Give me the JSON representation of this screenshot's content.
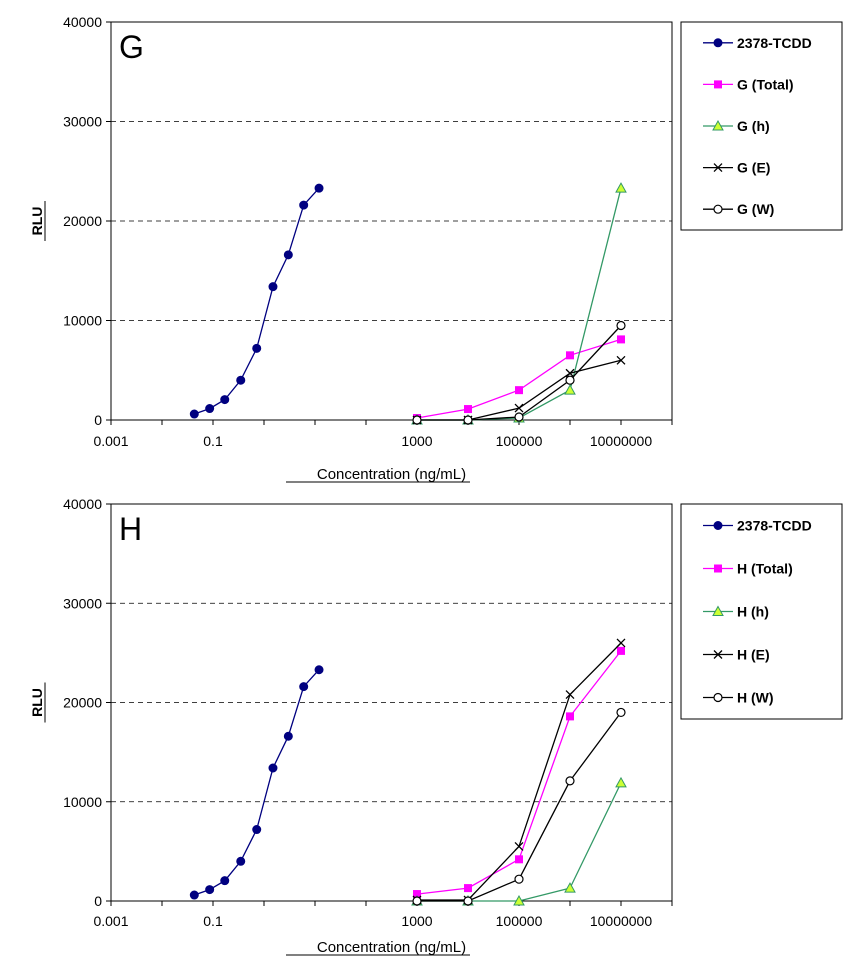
{
  "chart_data": [
    {
      "type": "line",
      "panel_label": "G",
      "xlabel": "Concentration (ng/mL)",
      "ylabel": "RLU",
      "xscale": "log",
      "xlim": [
        0.001,
        100000000
      ],
      "ylim": [
        0,
        40000
      ],
      "x_ticks": [
        "0.001",
        "0.1",
        "1000",
        "100000",
        "10000000"
      ],
      "y_ticks": [
        "0",
        "10000",
        "20000",
        "30000",
        "40000"
      ],
      "grid": "horizontal-dashed",
      "legend_position": "right",
      "series": [
        {
          "name": "2378-TCDD",
          "marker": "circle-filled",
          "color": "#000080",
          "x": [
            0.043,
            0.086,
            0.17,
            0.35,
            0.72,
            1.5,
            3.0,
            6.0,
            12.0
          ],
          "y": [
            600,
            1150,
            2050,
            4000,
            7200,
            13400,
            16600,
            21600,
            23300
          ]
        },
        {
          "name": "G (Total)",
          "marker": "square-filled",
          "color": "#FF00FF",
          "x": [
            1000,
            10000,
            100000,
            1000000,
            10000000
          ],
          "y": [
            200,
            1100,
            3000,
            6500,
            8100
          ]
        },
        {
          "name": "G (h)",
          "marker": "triangle",
          "color": "#339966",
          "x": [
            1000,
            10000,
            100000,
            1000000,
            10000000
          ],
          "y": [
            0,
            0,
            200,
            3000,
            23300
          ]
        },
        {
          "name": "G (E)",
          "marker": "x",
          "color": "#000000",
          "x": [
            1000,
            10000,
            100000,
            1000000,
            10000000
          ],
          "y": [
            0,
            0,
            1200,
            4700,
            6000
          ]
        },
        {
          "name": "G (W)",
          "marker": "circle-open",
          "color": "#000000",
          "x": [
            1000,
            10000,
            100000,
            1000000,
            10000000
          ],
          "y": [
            0,
            0,
            300,
            4000,
            9500
          ]
        }
      ]
    },
    {
      "type": "line",
      "panel_label": "H",
      "xlabel": "Concentration (ng/mL)",
      "ylabel": "RLU",
      "xscale": "log",
      "xlim": [
        0.001,
        100000000
      ],
      "ylim": [
        0,
        40000
      ],
      "x_ticks": [
        "0.001",
        "0.1",
        "1000",
        "100000",
        "10000000"
      ],
      "y_ticks": [
        "0",
        "10000",
        "20000",
        "30000",
        "40000"
      ],
      "grid": "horizontal-dashed",
      "legend_position": "right",
      "series": [
        {
          "name": "2378-TCDD",
          "marker": "circle-filled",
          "color": "#000080",
          "x": [
            0.043,
            0.086,
            0.17,
            0.35,
            0.72,
            1.5,
            3.0,
            6.0,
            12.0
          ],
          "y": [
            600,
            1150,
            2050,
            4000,
            7200,
            13400,
            16600,
            21600,
            23300
          ]
        },
        {
          "name": "H (Total)",
          "marker": "square-filled",
          "color": "#FF00FF",
          "x": [
            1000,
            10000,
            100000,
            1000000,
            10000000
          ],
          "y": [
            700,
            1300,
            4200,
            18600,
            25200
          ]
        },
        {
          "name": "H (h)",
          "marker": "triangle",
          "color": "#339966",
          "x": [
            1000,
            10000,
            100000,
            1000000,
            10000000
          ],
          "y": [
            0,
            0,
            0,
            1300,
            11900
          ]
        },
        {
          "name": "H (E)",
          "marker": "x",
          "color": "#000000",
          "x": [
            1000,
            10000,
            100000,
            1000000,
            10000000
          ],
          "y": [
            100,
            100,
            5500,
            20800,
            26000
          ]
        },
        {
          "name": "H (W)",
          "marker": "circle-open",
          "color": "#000000",
          "x": [
            1000,
            10000,
            100000,
            1000000,
            10000000
          ],
          "y": [
            0,
            0,
            2200,
            12100,
            19000
          ]
        }
      ]
    }
  ]
}
